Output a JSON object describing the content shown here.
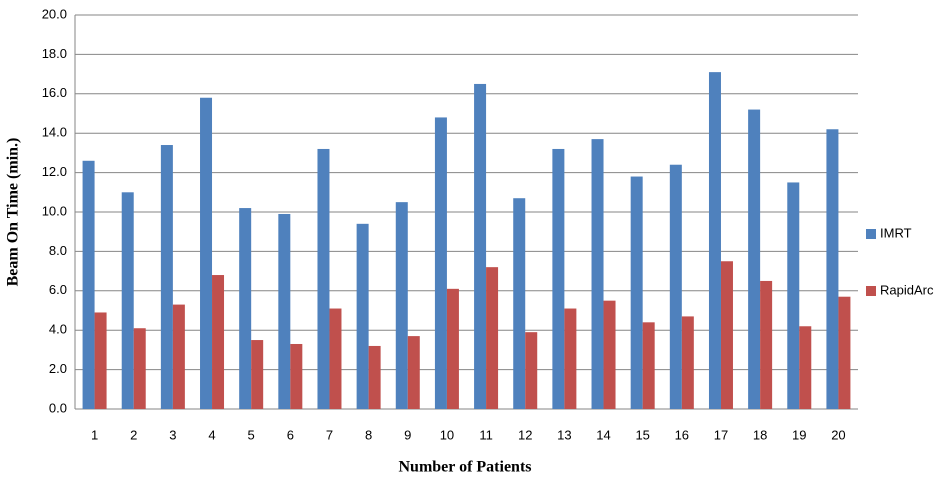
{
  "chart_data": {
    "type": "bar",
    "x_label": "Number of Patients",
    "y_label": "Beam On Time (min.)",
    "categories": [
      "1",
      "2",
      "3",
      "4",
      "5",
      "6",
      "7",
      "8",
      "9",
      "10",
      "11",
      "12",
      "13",
      "14",
      "15",
      "16",
      "17",
      "18",
      "19",
      "20"
    ],
    "series": [
      {
        "name": "IMRT",
        "color": "#4f81bd",
        "values": [
          12.6,
          11.0,
          13.4,
          15.8,
          10.2,
          9.9,
          13.2,
          9.4,
          10.5,
          14.8,
          16.5,
          10.7,
          13.2,
          13.7,
          11.8,
          12.4,
          17.1,
          15.2,
          11.5,
          14.2
        ]
      },
      {
        "name": "RapidArc",
        "color": "#c0504d",
        "values": [
          4.9,
          4.1,
          5.3,
          6.8,
          3.5,
          3.3,
          5.1,
          3.2,
          3.7,
          6.1,
          7.2,
          3.9,
          5.1,
          5.5,
          4.4,
          4.7,
          7.5,
          6.5,
          4.2,
          5.7
        ]
      }
    ],
    "ylim": [
      0,
      20
    ],
    "yticks": [
      {
        "value": 0,
        "label": "0.0"
      },
      {
        "value": 2,
        "label": "2.0"
      },
      {
        "value": 4,
        "label": "4.0"
      },
      {
        "value": 6,
        "label": "6.0"
      },
      {
        "value": 8,
        "label": "8.0"
      },
      {
        "value": 10,
        "label": "10.0"
      },
      {
        "value": 12,
        "label": "12.0"
      },
      {
        "value": 14,
        "label": "14.0"
      },
      {
        "value": 16,
        "label": "16.0"
      },
      {
        "value": 18,
        "label": "18.0"
      },
      {
        "value": 20,
        "label": "20.0"
      }
    ],
    "grid": true,
    "legend": "right"
  }
}
